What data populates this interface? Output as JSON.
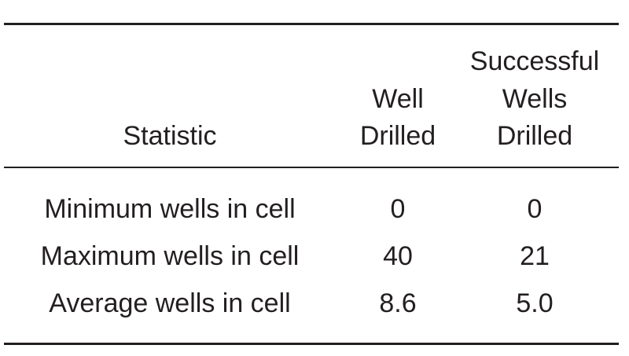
{
  "table": {
    "headers": {
      "statistic": "Statistic",
      "well_drilled": [
        "Well",
        "Drilled"
      ],
      "successful": [
        "Successful",
        "Wells",
        "Drilled"
      ]
    },
    "rows": [
      {
        "statistic": "Minimum wells in cell",
        "well_drilled": "0",
        "successful": "0"
      },
      {
        "statistic": "Maximum wells in cell",
        "well_drilled": "40",
        "successful": "21"
      },
      {
        "statistic": "Average wells in cell",
        "well_drilled": "8.6",
        "successful": "5.0"
      }
    ]
  }
}
